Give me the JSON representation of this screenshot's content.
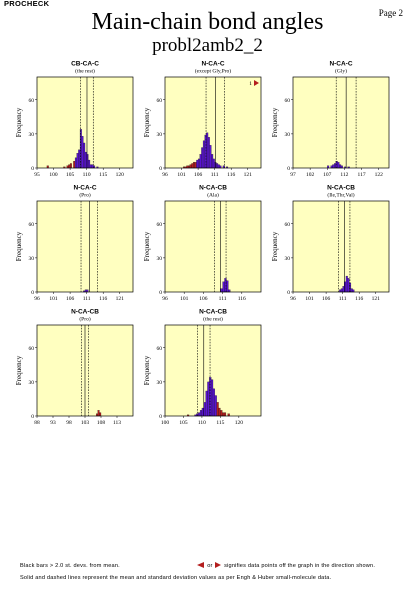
{
  "header": {
    "program": "PROCHECK",
    "page": "Page 2"
  },
  "title": "Main-chain bond angles",
  "subtitle": "probl2amb2_2",
  "footer": {
    "black_bars": "Black bars > 2.0 st. devs. from mean.",
    "arrow_or": "or",
    "arrow_note": "signifies data points off the graph in the direction shown.",
    "lines_note": "Solid and dashed lines represent the mean and standard deviation values as per Engh & Huber small-molecule data."
  },
  "colors": {
    "plot_bg": "#ffffc0",
    "bar_in": "#5a14d2",
    "bar_out": "#b41e1e",
    "offgraph_arrow": "#b41e1e"
  },
  "chart_data": [
    {
      "type": "bar",
      "title": "CB-CA-C",
      "subtitle": "(the rest)",
      "ylabel": "Frequency",
      "yticks": [
        0,
        30,
        60
      ],
      "ylim": [
        0,
        80
      ],
      "xlim": [
        95,
        124
      ],
      "xticks": [
        95,
        100,
        105,
        110,
        115,
        120
      ],
      "xtick_labels": [
        "95",
        "100",
        "105",
        "110",
        "115",
        "120"
      ],
      "mean": 110.1,
      "sd": 1.9,
      "bin_width": 0.5,
      "bins": [
        [
          98,
          2
        ],
        [
          103,
          1
        ],
        [
          104,
          2
        ],
        [
          104.5,
          3
        ],
        [
          105,
          4
        ],
        [
          106,
          6
        ],
        [
          106.5,
          9
        ],
        [
          107,
          13
        ],
        [
          107.5,
          16
        ],
        [
          108,
          34
        ],
        [
          108.5,
          28
        ],
        [
          109,
          22
        ],
        [
          109.5,
          14
        ],
        [
          110,
          12
        ],
        [
          110.5,
          7
        ],
        [
          111,
          3
        ],
        [
          111.5,
          3
        ],
        [
          112,
          2
        ],
        [
          113,
          1
        ]
      ],
      "off_graph": null
    },
    {
      "type": "bar",
      "title": "N-CA-C",
      "subtitle": "(except Gly,Pro)",
      "ylabel": "Frequency",
      "yticks": [
        0,
        30,
        60
      ],
      "ylim": [
        0,
        80
      ],
      "xlim": [
        96,
        125
      ],
      "xticks": [
        96,
        101,
        106,
        111,
        116,
        121
      ],
      "xtick_labels": [
        "96",
        "101",
        "106",
        "111",
        "116",
        "121"
      ],
      "mean": 111.2,
      "sd": 2.8,
      "bin_width": 0.5,
      "bins": [
        [
          101.5,
          1
        ],
        [
          102,
          1
        ],
        [
          102.5,
          2
        ],
        [
          103,
          2
        ],
        [
          103.5,
          3
        ],
        [
          104,
          4
        ],
        [
          104.5,
          5
        ],
        [
          105,
          5
        ],
        [
          105.5,
          7
        ],
        [
          106,
          8
        ],
        [
          106.5,
          12
        ],
        [
          107,
          18
        ],
        [
          107.5,
          24
        ],
        [
          108,
          29
        ],
        [
          108.5,
          31
        ],
        [
          109,
          27
        ],
        [
          109.5,
          20
        ],
        [
          110,
          12
        ],
        [
          110.5,
          8
        ],
        [
          111,
          5
        ],
        [
          111.5,
          4
        ],
        [
          112,
          3
        ],
        [
          112.5,
          2
        ],
        [
          113.5,
          2
        ],
        [
          114.5,
          1
        ]
      ],
      "off_graph": {
        "count": "1",
        "direction": "right"
      }
    },
    {
      "type": "bar",
      "title": "N-CA-C",
      "subtitle": "(Gly)",
      "ylabel": "Frequency",
      "yticks": [
        0,
        30,
        60
      ],
      "ylim": [
        0,
        80
      ],
      "xlim": [
        97,
        125
      ],
      "xticks": [
        97,
        102,
        107,
        112,
        117,
        122
      ],
      "xtick_labels": [
        "97",
        "102",
        "107",
        "112",
        "117",
        "122"
      ],
      "mean": 112.5,
      "sd": 2.9,
      "bin_width": 0.5,
      "bins": [
        [
          107,
          2
        ],
        [
          108,
          2
        ],
        [
          108.5,
          3
        ],
        [
          109,
          4
        ],
        [
          109.5,
          6
        ],
        [
          110,
          5
        ],
        [
          110.5,
          3
        ],
        [
          111,
          2
        ],
        [
          112,
          1
        ],
        [
          113,
          1
        ]
      ],
      "off_graph": null
    },
    {
      "type": "bar",
      "title": "N-CA-C",
      "subtitle": "(Pro)",
      "ylabel": "Frequency",
      "yticks": [
        0,
        30,
        60
      ],
      "ylim": [
        0,
        80
      ],
      "xlim": [
        96,
        125
      ],
      "xticks": [
        96,
        101,
        106,
        111,
        116,
        121
      ],
      "xtick_labels": [
        "96",
        "101",
        "106",
        "111",
        "116",
        "121"
      ],
      "mean": 111.8,
      "sd": 2.5,
      "bin_width": 0.5,
      "bins": [
        [
          110,
          1
        ],
        [
          110.5,
          2
        ],
        [
          111,
          2
        ]
      ],
      "off_graph": null
    },
    {
      "type": "bar",
      "title": "N-CA-CB",
      "subtitle": "(Ala)",
      "ylabel": "Frequency",
      "yticks": [
        0,
        30,
        60
      ],
      "ylim": [
        0,
        80
      ],
      "xlim": [
        96,
        121
      ],
      "xticks": [
        96,
        101,
        106,
        111,
        116
      ],
      "xtick_labels": [
        "96",
        "101",
        "106",
        "111",
        "116"
      ],
      "mean": 110.4,
      "sd": 1.5,
      "bin_width": 0.5,
      "bins": [
        [
          110.5,
          3
        ],
        [
          111,
          9
        ],
        [
          111.5,
          12
        ],
        [
          112,
          10
        ],
        [
          112.5,
          2
        ]
      ],
      "off_graph": null
    },
    {
      "type": "bar",
      "title": "N-CA-CB",
      "subtitle": "(Ile,Thr,Val)",
      "ylabel": "Frequency",
      "yticks": [
        0,
        30,
        60
      ],
      "ylim": [
        0,
        80
      ],
      "xlim": [
        96,
        125
      ],
      "xticks": [
        96,
        101,
        106,
        111,
        116,
        121
      ],
      "xtick_labels": [
        "96",
        "101",
        "106",
        "111",
        "116",
        "121"
      ],
      "mean": 111.5,
      "sd": 1.7,
      "bin_width": 0.5,
      "bins": [
        [
          110,
          2
        ],
        [
          110.5,
          3
        ],
        [
          111,
          5
        ],
        [
          111.5,
          9
        ],
        [
          112,
          14
        ],
        [
          112.5,
          12
        ],
        [
          113,
          8
        ],
        [
          113.5,
          3
        ],
        [
          114,
          2
        ]
      ],
      "off_graph": null
    },
    {
      "type": "bar",
      "title": "N-CA-CB",
      "subtitle": "(Pro)",
      "ylabel": "Frequency",
      "yticks": [
        0,
        30,
        60
      ],
      "ylim": [
        0,
        80
      ],
      "xlim": [
        88,
        118
      ],
      "xticks": [
        88,
        93,
        98,
        103,
        108,
        113
      ],
      "xtick_labels": [
        "88",
        "93",
        "98",
        "103",
        "108",
        "113"
      ],
      "mean": 103.0,
      "sd": 1.1,
      "bin_width": 0.5,
      "bins": [
        [
          106.5,
          2
        ],
        [
          107,
          5
        ],
        [
          107.5,
          3
        ]
      ],
      "off_graph": null
    },
    {
      "type": "bar",
      "title": "N-CA-CB",
      "subtitle": "(the rest)",
      "ylabel": "Frequency",
      "yticks": [
        0,
        30,
        60
      ],
      "ylim": [
        0,
        80
      ],
      "xlim": [
        100,
        126
      ],
      "xticks": [
        100,
        105,
        110,
        115,
        120
      ],
      "xtick_labels": [
        "100",
        "105",
        "110",
        "115",
        "120"
      ],
      "mean": 110.5,
      "sd": 1.7,
      "bin_width": 0.5,
      "bins": [
        [
          106,
          1
        ],
        [
          108,
          1
        ],
        [
          108.5,
          2
        ],
        [
          109,
          3
        ],
        [
          109.5,
          5
        ],
        [
          110,
          7
        ],
        [
          110.5,
          12
        ],
        [
          111,
          22
        ],
        [
          111.5,
          30
        ],
        [
          112,
          34
        ],
        [
          112.5,
          32
        ],
        [
          113,
          24
        ],
        [
          113.5,
          18
        ],
        [
          114,
          12
        ],
        [
          114.5,
          7
        ],
        [
          115,
          5
        ],
        [
          115.5,
          3
        ],
        [
          116,
          3
        ],
        [
          117,
          2
        ]
      ],
      "off_graph": null
    }
  ]
}
